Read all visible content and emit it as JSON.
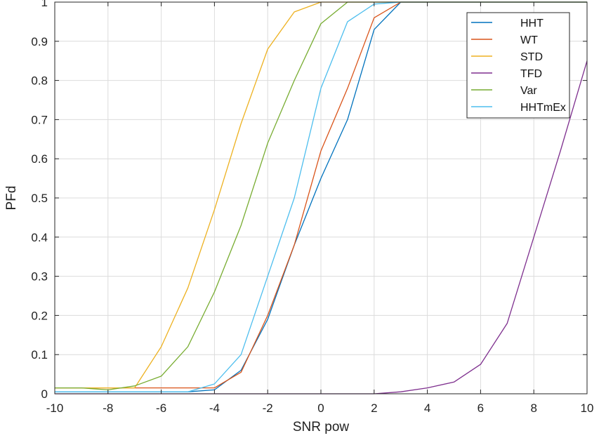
{
  "chart_data": {
    "type": "line",
    "title": "",
    "xlabel": "SNR pow",
    "ylabel": "PFd",
    "xlim": [
      -10,
      10
    ],
    "ylim": [
      0,
      1
    ],
    "grid": true,
    "legend_position": "top-right",
    "xticks": [
      -10,
      -8,
      -6,
      -4,
      -2,
      0,
      2,
      4,
      6,
      8,
      10
    ],
    "xtick_labels": [
      "-10",
      "-8",
      "-6",
      "-4",
      "-2",
      "0",
      "2",
      "4",
      "6",
      "8",
      "10"
    ],
    "yticks": [
      0,
      0.1,
      0.2,
      0.3,
      0.4,
      0.5,
      0.6,
      0.7,
      0.8,
      0.9,
      1
    ],
    "ytick_labels": [
      "0",
      "0.1",
      "0.2",
      "0.3",
      "0.4",
      "0.5",
      "0.6",
      "0.7",
      "0.8",
      "0.9",
      "1"
    ],
    "series": [
      {
        "name": "HHT",
        "color": "#0072BD",
        "x": [
          -10,
          -9,
          -8,
          -7,
          -6,
          -5,
          -4,
          -3,
          -2,
          -1,
          0,
          1,
          2,
          3,
          4,
          5,
          6,
          7,
          8,
          9,
          10
        ],
        "y": [
          0.005,
          0.005,
          0.005,
          0.005,
          0.005,
          0.005,
          0.01,
          0.06,
          0.19,
          0.38,
          0.55,
          0.7,
          0.93,
          1.0,
          1.0,
          1.0,
          1.0,
          1.0,
          1.0,
          1.0,
          1.0
        ]
      },
      {
        "name": "WT",
        "color": "#D95319",
        "x": [
          -10,
          -9,
          -8,
          -7,
          -6,
          -5,
          -4,
          -3,
          -2,
          -1,
          0,
          1,
          2,
          3,
          4,
          5,
          6,
          7,
          8,
          9,
          10
        ],
        "y": [
          0.015,
          0.015,
          0.015,
          0.015,
          0.015,
          0.015,
          0.015,
          0.055,
          0.2,
          0.38,
          0.62,
          0.78,
          0.96,
          1.0,
          1.0,
          1.0,
          1.0,
          1.0,
          1.0,
          1.0,
          1.0
        ]
      },
      {
        "name": "STD",
        "color": "#EDB120",
        "x": [
          -10,
          -9,
          -8,
          -7,
          -6,
          -5,
          -4,
          -3,
          -2,
          -1,
          0,
          1,
          2,
          3,
          4,
          5,
          6,
          7,
          8,
          9,
          10
        ],
        "y": [
          0.015,
          0.015,
          0.015,
          0.015,
          0.12,
          0.27,
          0.47,
          0.69,
          0.88,
          0.975,
          1.0,
          1.0,
          1.0,
          1.0,
          1.0,
          1.0,
          1.0,
          1.0,
          1.0,
          1.0,
          1.0
        ]
      },
      {
        "name": "TFD",
        "color": "#7E2F8E",
        "x": [
          -10,
          -9,
          -8,
          -7,
          -6,
          -5,
          -4,
          -3,
          -2,
          -1,
          0,
          1,
          2,
          3,
          4,
          5,
          6,
          7,
          8,
          9,
          10
        ],
        "y": [
          0,
          0,
          0,
          0,
          0,
          0,
          0,
          0,
          0,
          0,
          0,
          0,
          0,
          0.005,
          0.015,
          0.03,
          0.075,
          0.18,
          0.4,
          0.62,
          0.85
        ]
      },
      {
        "name": "Var",
        "color": "#77AC30",
        "x": [
          -10,
          -9,
          -8,
          -7,
          -6,
          -5,
          -4,
          -3,
          -2,
          -1,
          0,
          1,
          2,
          3,
          4,
          5,
          6,
          7,
          8,
          9,
          10
        ],
        "y": [
          0.015,
          0.015,
          0.01,
          0.02,
          0.045,
          0.12,
          0.26,
          0.43,
          0.64,
          0.8,
          0.945,
          1.0,
          1.0,
          1.0,
          1.0,
          1.0,
          1.0,
          1.0,
          1.0,
          1.0,
          1.0
        ]
      },
      {
        "name": "HHTmEx",
        "color": "#4DBEEE",
        "x": [
          -10,
          -9,
          -8,
          -7,
          -6,
          -5,
          -4,
          -3,
          -2,
          -1,
          0,
          1,
          2,
          3,
          4,
          5,
          6,
          7,
          8,
          9,
          10
        ],
        "y": [
          0.005,
          0.005,
          0.005,
          0.005,
          0.005,
          0.005,
          0.025,
          0.1,
          0.3,
          0.5,
          0.78,
          0.95,
          0.995,
          1.0,
          1.0,
          1.0,
          1.0,
          1.0,
          1.0,
          1.0,
          1.0
        ]
      }
    ]
  }
}
